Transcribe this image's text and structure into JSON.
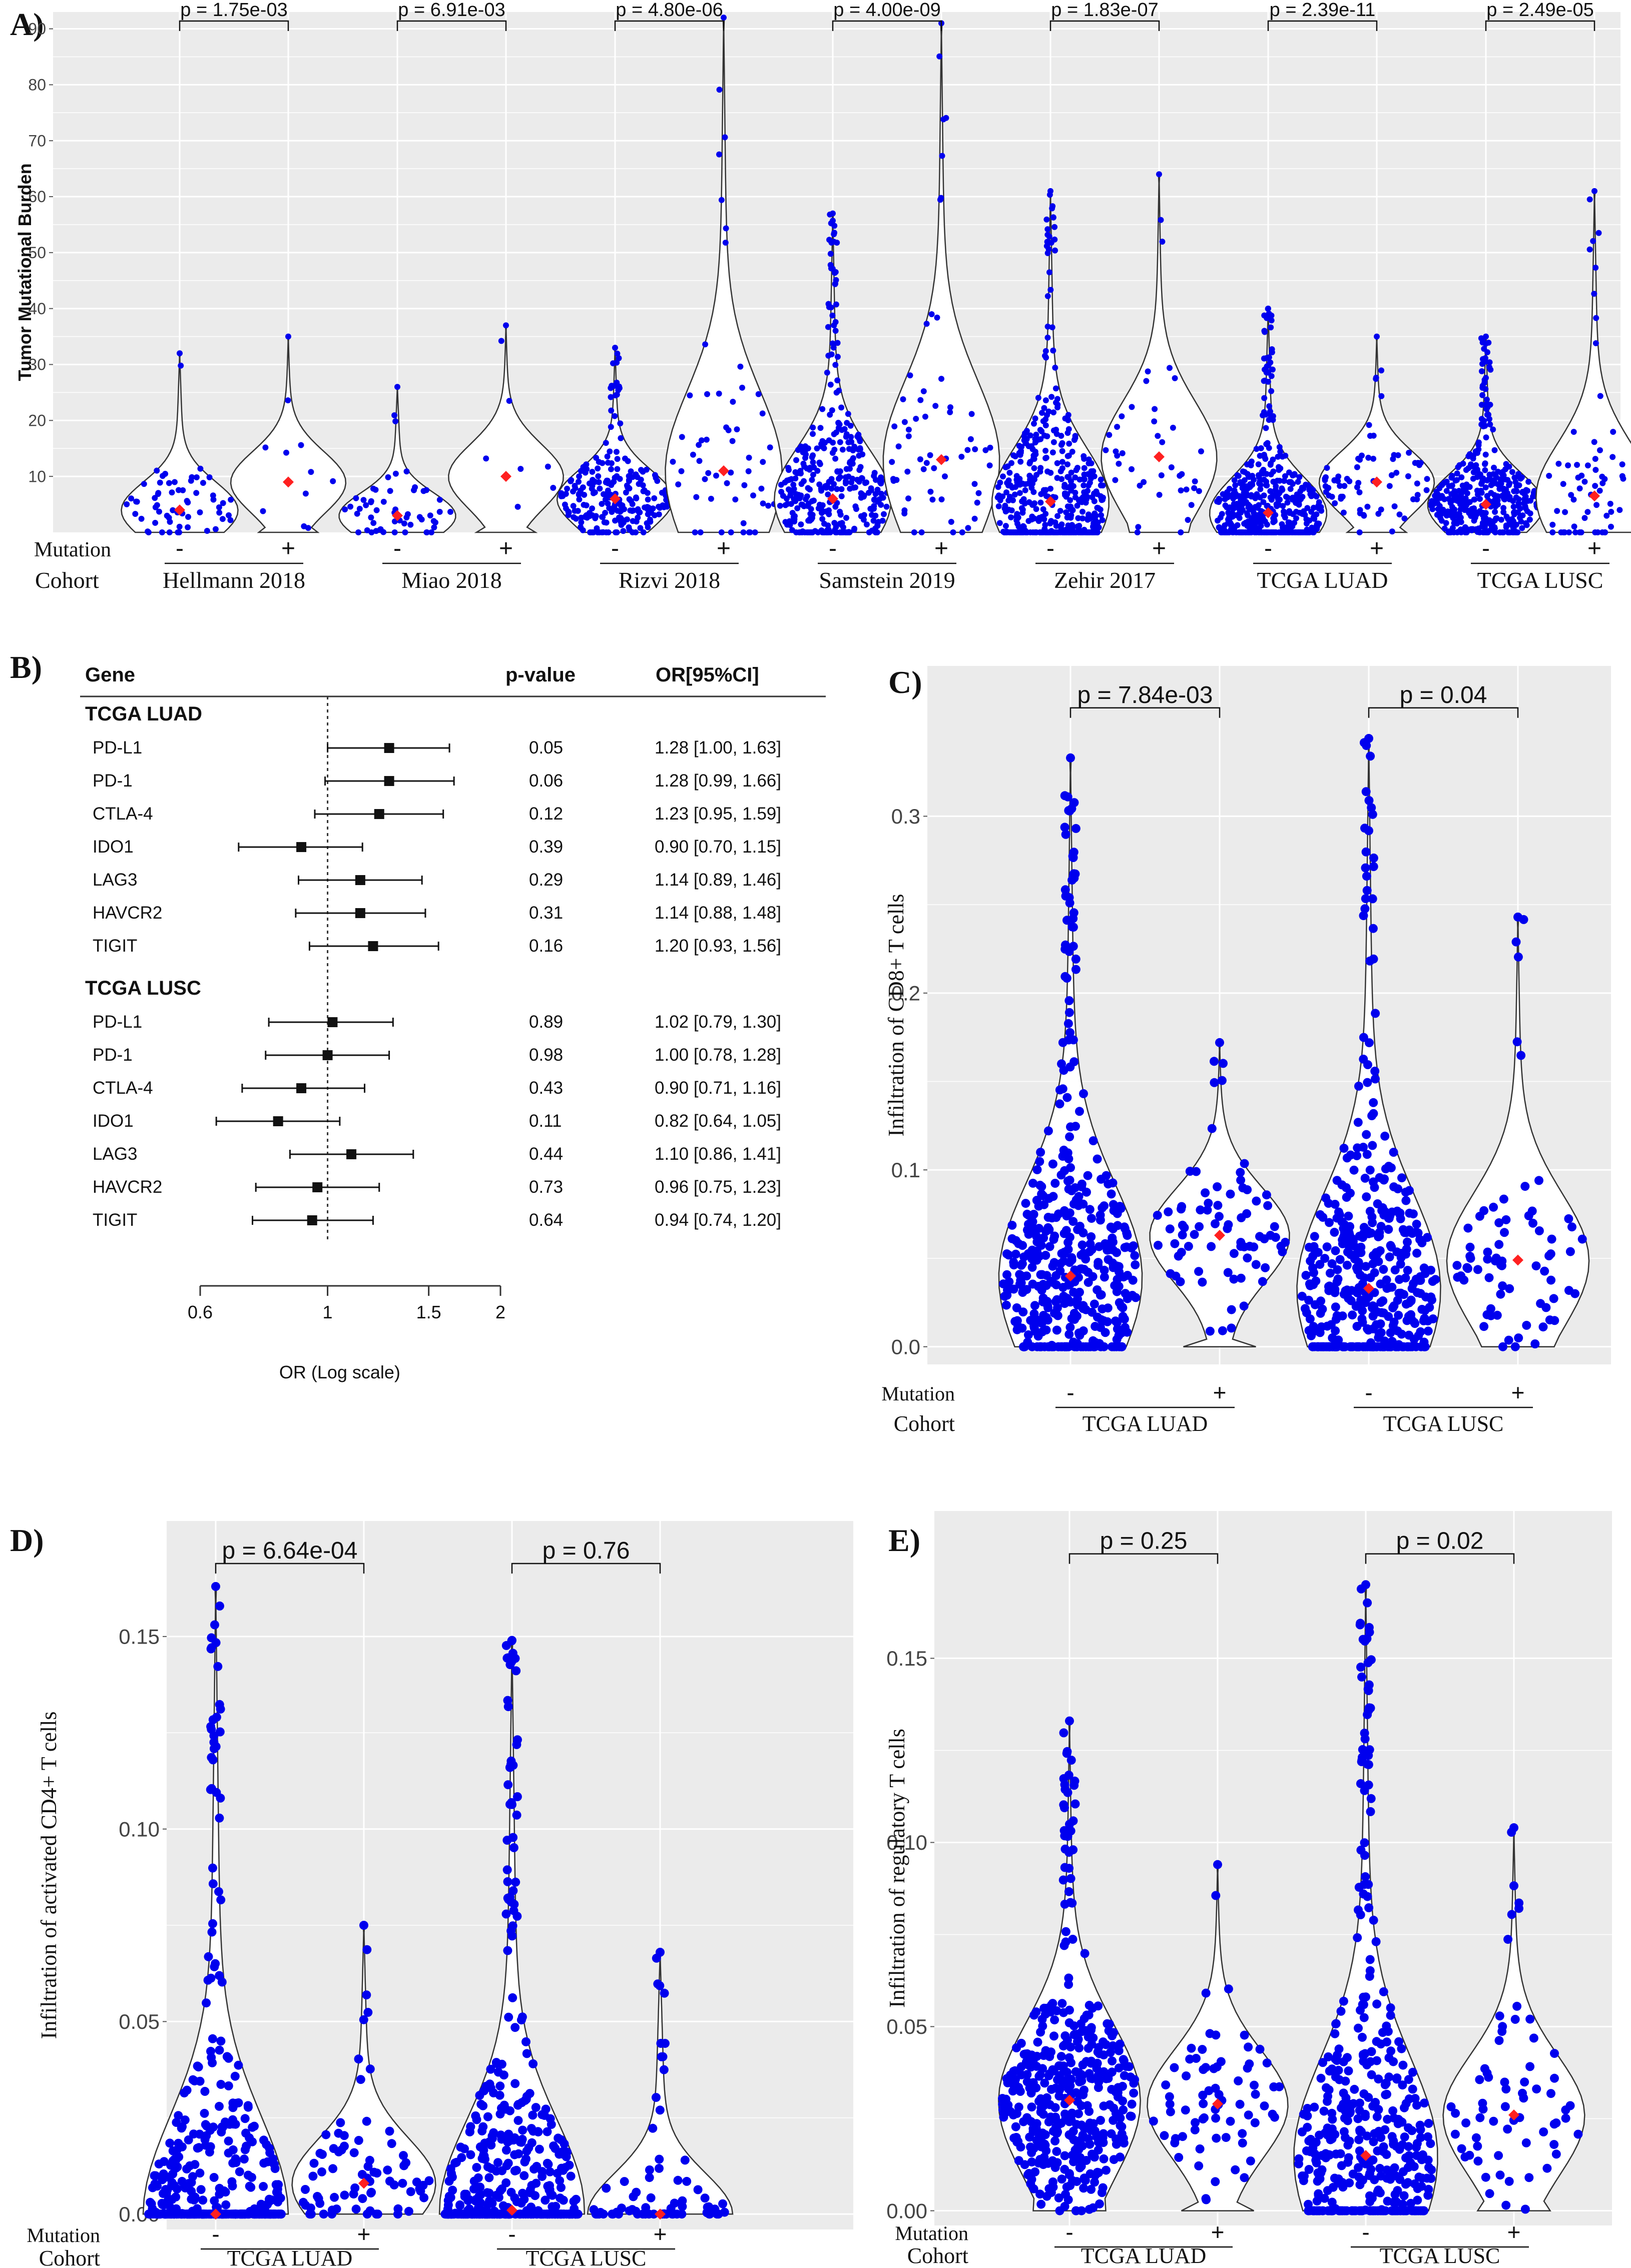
{
  "colors": {
    "panel_bg": "#ebebeb",
    "grid": "#ffffff",
    "point": "#0000ee",
    "median": "#ff2020",
    "outline": "#333333",
    "text": "#111111"
  },
  "row_labels": {
    "mutation": "Mutation",
    "cohort": "Cohort",
    "minus": "-",
    "plus": "+"
  },
  "chart_data": [
    {
      "id": "A",
      "label": "A)",
      "type": "violin",
      "ylabel": "Tumor Mutational Burden",
      "ylim": [
        0,
        93
      ],
      "yticks": [
        10,
        20,
        30,
        40,
        50,
        60,
        70,
        80,
        90
      ],
      "cohorts": [
        {
          "name": "Hellmann 2018",
          "p": "p = 1.75e-03",
          "groups": [
            {
              "mutation": "-",
              "median": 4,
              "max": 32,
              "n": 60
            },
            {
              "mutation": "+",
              "median": 9,
              "max": 35,
              "n": 10
            }
          ]
        },
        {
          "name": "Miao 2018",
          "p": "p = 6.91e-03",
          "groups": [
            {
              "mutation": "-",
              "median": 3,
              "max": 26,
              "n": 55
            },
            {
              "mutation": "+",
              "median": 10,
              "max": 37,
              "n": 7
            }
          ]
        },
        {
          "name": "Rizvi 2018",
          "p": "p = 4.80e-06",
          "groups": [
            {
              "mutation": "-",
              "median": 6,
              "max": 33,
              "n": 230
            },
            {
              "mutation": "+",
              "median": 11,
              "max": 92,
              "n": 55
            }
          ]
        },
        {
          "name": "Samstein 2019",
          "p": "p = 4.00e-09",
          "groups": [
            {
              "mutation": "-",
              "median": 6,
              "max": 57,
              "n": 350
            },
            {
              "mutation": "+",
              "median": 13,
              "max": 91,
              "n": 60
            }
          ]
        },
        {
          "name": "Zehir 2017",
          "p": "p = 1.83e-07",
          "groups": [
            {
              "mutation": "-",
              "median": 5.5,
              "max": 61,
              "n": 450
            },
            {
              "mutation": "+",
              "median": 13.5,
              "max": 64,
              "n": 40
            }
          ]
        },
        {
          "name": "TCGA  LUAD",
          "p": "p = 2.39e-11",
          "groups": [
            {
              "mutation": "-",
              "median": 3.5,
              "max": 40,
              "n": 450
            },
            {
              "mutation": "+",
              "median": 9,
              "max": 35,
              "n": 70
            }
          ]
        },
        {
          "name": "TCGA  LUSC",
          "p": "p = 2.49e-05",
          "groups": [
            {
              "mutation": "-",
              "median": 5,
              "max": 35,
              "n": 400
            },
            {
              "mutation": "+",
              "median": 6.5,
              "max": 61,
              "n": 70
            }
          ]
        }
      ]
    },
    {
      "id": "B",
      "label": "B)",
      "type": "forest",
      "header": {
        "gene": "Gene",
        "pvalue": "p-value",
        "or": "OR[95%CI]"
      },
      "xlabel": "OR (Log scale)",
      "xticks": [
        0.6,
        1,
        1.5,
        2
      ],
      "xtick_labels": [
        "0.6",
        "1",
        "1.5",
        "2"
      ],
      "xlim": [
        0.6,
        2
      ],
      "groups": [
        {
          "name": "TCGA LUAD",
          "rows": [
            {
              "gene": "PD-L1",
              "p": "0.05",
              "or": 1.28,
              "lo": 1.0,
              "hi": 1.63,
              "text": "1.28 [1.00, 1.63]"
            },
            {
              "gene": "PD-1",
              "p": "0.06",
              "or": 1.28,
              "lo": 0.99,
              "hi": 1.66,
              "text": "1.28 [0.99, 1.66]"
            },
            {
              "gene": "CTLA-4",
              "p": "0.12",
              "or": 1.23,
              "lo": 0.95,
              "hi": 1.59,
              "text": "1.23 [0.95, 1.59]"
            },
            {
              "gene": "IDO1",
              "p": "0.39",
              "or": 0.9,
              "lo": 0.7,
              "hi": 1.15,
              "text": "0.90 [0.70, 1.15]"
            },
            {
              "gene": "LAG3",
              "p": "0.29",
              "or": 1.14,
              "lo": 0.89,
              "hi": 1.46,
              "text": "1.14 [0.89, 1.46]"
            },
            {
              "gene": "HAVCR2",
              "p": "0.31",
              "or": 1.14,
              "lo": 0.88,
              "hi": 1.48,
              "text": "1.14 [0.88, 1.48]"
            },
            {
              "gene": "TIGIT",
              "p": "0.16",
              "or": 1.2,
              "lo": 0.93,
              "hi": 1.56,
              "text": "1.20 [0.93, 1.56]"
            }
          ]
        },
        {
          "name": "TCGA LUSC",
          "rows": [
            {
              "gene": "PD-L1",
              "p": "0.89",
              "or": 1.02,
              "lo": 0.79,
              "hi": 1.3,
              "text": "1.02 [0.79, 1.30]"
            },
            {
              "gene": "PD-1",
              "p": "0.98",
              "or": 1.0,
              "lo": 0.78,
              "hi": 1.28,
              "text": "1.00 [0.78, 1.28]"
            },
            {
              "gene": "CTLA-4",
              "p": "0.43",
              "or": 0.9,
              "lo": 0.71,
              "hi": 1.16,
              "text": "0.90 [0.71, 1.16]"
            },
            {
              "gene": "IDO1",
              "p": "0.11",
              "or": 0.82,
              "lo": 0.64,
              "hi": 1.05,
              "text": "0.82 [0.64, 1.05]"
            },
            {
              "gene": "LAG3",
              "p": "0.44",
              "or": 1.1,
              "lo": 0.86,
              "hi": 1.41,
              "text": "1.10 [0.86, 1.41]"
            },
            {
              "gene": "HAVCR2",
              "p": "0.73",
              "or": 0.96,
              "lo": 0.75,
              "hi": 1.23,
              "text": "0.96 [0.75, 1.23]"
            },
            {
              "gene": "TIGIT",
              "p": "0.64",
              "or": 0.94,
              "lo": 0.74,
              "hi": 1.2,
              "text": "0.94 [0.74, 1.20]"
            }
          ]
        }
      ]
    },
    {
      "id": "C",
      "label": "C)",
      "type": "violin",
      "ylabel": "Infiltration of CD8+ T cells",
      "ylim": [
        -0.01,
        0.385
      ],
      "yticks": [
        0.0,
        0.1,
        0.2,
        0.3
      ],
      "ytick_labels": [
        "0.0",
        "0.1",
        "0.2",
        "0.3"
      ],
      "cohorts": [
        {
          "name": "TCGA  LUAD",
          "p": "p = 7.84e-03",
          "groups": [
            {
              "mutation": "-",
              "median": 0.04,
              "max": 0.333,
              "n": 420
            },
            {
              "mutation": "+",
              "median": 0.063,
              "max": 0.172,
              "n": 75
            }
          ]
        },
        {
          "name": "TCGA  LUSC",
          "p": "p = 0.04",
          "groups": [
            {
              "mutation": "-",
              "median": 0.033,
              "max": 0.344,
              "n": 420
            },
            {
              "mutation": "+",
              "median": 0.049,
              "max": 0.243,
              "n": 70
            }
          ]
        }
      ]
    },
    {
      "id": "D",
      "label": "D)",
      "type": "violin",
      "ylabel": "Infiltration of activated CD4+ T cells",
      "ylim": [
        -0.004,
        0.18
      ],
      "yticks": [
        0.0,
        0.05,
        0.1,
        0.15
      ],
      "ytick_labels": [
        "0.00",
        "0.05",
        "0.10",
        "0.15"
      ],
      "cohorts": [
        {
          "name": "TCGA  LUAD",
          "p": "p = 6.64e-04",
          "groups": [
            {
              "mutation": "-",
              "median": 0.0,
              "max": 0.163,
              "n": 420
            },
            {
              "mutation": "+",
              "median": 0.008,
              "max": 0.075,
              "n": 75
            }
          ]
        },
        {
          "name": "TCGA  LUSC",
          "p": "p = 0.76",
          "groups": [
            {
              "mutation": "-",
              "median": 0.001,
              "max": 0.149,
              "n": 420
            },
            {
              "mutation": "+",
              "median": 0.0,
              "max": 0.068,
              "n": 70
            }
          ]
        }
      ]
    },
    {
      "id": "E",
      "label": "E)",
      "type": "violin",
      "ylabel": "Infiltration of regulatory T cells",
      "ylim": [
        -0.004,
        0.19
      ],
      "yticks": [
        0.0,
        0.05,
        0.1,
        0.15
      ],
      "ytick_labels": [
        "0.00",
        "0.05",
        "0.10",
        "0.15"
      ],
      "cohorts": [
        {
          "name": "TCGA  LUAD",
          "p": "p = 0.25",
          "groups": [
            {
              "mutation": "-",
              "median": 0.03,
              "max": 0.133,
              "n": 420
            },
            {
              "mutation": "+",
              "median": 0.029,
              "max": 0.094,
              "n": 70
            }
          ]
        },
        {
          "name": "TCGA  LUSC",
          "p": "p = 0.02",
          "groups": [
            {
              "mutation": "-",
              "median": 0.015,
              "max": 0.17,
              "n": 420
            },
            {
              "mutation": "+",
              "median": 0.026,
              "max": 0.104,
              "n": 65
            }
          ]
        }
      ]
    }
  ]
}
